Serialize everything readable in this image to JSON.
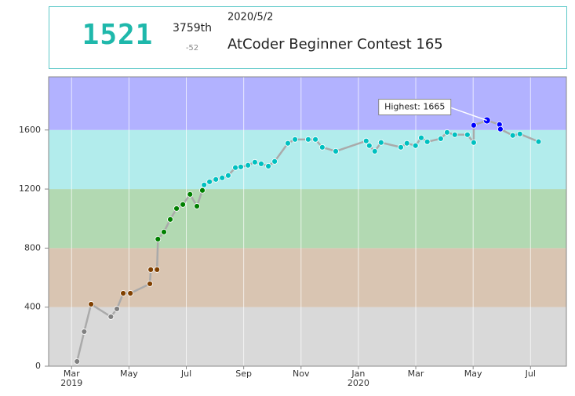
{
  "header": {
    "rating": "1521",
    "rank": "3759th",
    "diff": "-52",
    "date": "2020/5/2",
    "contest": "AtCoder Beginner Contest 165"
  },
  "chart_data": {
    "type": "line",
    "x": [
      0.19,
      0.44,
      0.68,
      1.37,
      1.58,
      1.8,
      2.05,
      2.73,
      2.76,
      2.98,
      3.01,
      3.22,
      3.44,
      3.66,
      3.88,
      4.13,
      4.37,
      4.56,
      4.62,
      4.81,
      5.03,
      5.25,
      5.46,
      5.71,
      5.9,
      6.15,
      6.39,
      6.61,
      6.86,
      7.08,
      7.54,
      7.79,
      8.25,
      8.5,
      8.74,
      9.21,
      10.27,
      10.38,
      10.57,
      10.79,
      11.48,
      11.69,
      11.99,
      12.19,
      12.4,
      12.87,
      13.09,
      13.36,
      13.8,
      14.02,
      14.02,
      14.48,
      14.92,
      14.95,
      15.38,
      15.63,
      16.28
    ],
    "values": [
      32,
      234,
      420,
      335,
      388,
      494,
      494,
      558,
      654,
      654,
      861,
      909,
      994,
      1068,
      1095,
      1164,
      1084,
      1191,
      1228,
      1249,
      1265,
      1276,
      1292,
      1345,
      1350,
      1361,
      1382,
      1371,
      1355,
      1387,
      1510,
      1536,
      1536,
      1536,
      1483,
      1456,
      1526,
      1494,
      1456,
      1515,
      1483,
      1510,
      1494,
      1547,
      1520,
      1541,
      1584,
      1568,
      1568,
      1515,
      1632,
      1665,
      1637,
      1606,
      1563,
      1573,
      1521
    ],
    "line_color": "#aaaaaa",
    "bands": [
      {
        "from": 0,
        "to": 400,
        "fill": "#d9d9d9",
        "point": "#808080"
      },
      {
        "from": 400,
        "to": 800,
        "fill": "#d9c5b2",
        "point": "#804000"
      },
      {
        "from": 800,
        "to": 1200,
        "fill": "#b2d9b2",
        "point": "#008000"
      },
      {
        "from": 1200,
        "to": 1600,
        "fill": "#b2ecec",
        "point": "#00c0c0"
      },
      {
        "from": 1600,
        "to": 1960,
        "fill": "#b2b2ff",
        "point": "#0000ff"
      }
    ],
    "highlight_index": 51,
    "annotation": "Highest: 1665",
    "xlim": [
      -0.8,
      17.25
    ],
    "xticks": [
      {
        "value": 0,
        "label": "Mar 2019"
      },
      {
        "value": 2,
        "label": "May"
      },
      {
        "value": 4,
        "label": "Jul"
      },
      {
        "value": 6,
        "label": "Sep"
      },
      {
        "value": 8,
        "label": "Nov"
      },
      {
        "value": 10,
        "label": "Jan 2020"
      },
      {
        "value": 12,
        "label": "Mar"
      },
      {
        "value": 14,
        "label": "May"
      },
      {
        "value": 16,
        "label": "Jul"
      }
    ],
    "ylim": [
      0,
      1960
    ],
    "yticks": [
      0,
      400,
      800,
      1200,
      1600
    ],
    "grid": true
  }
}
